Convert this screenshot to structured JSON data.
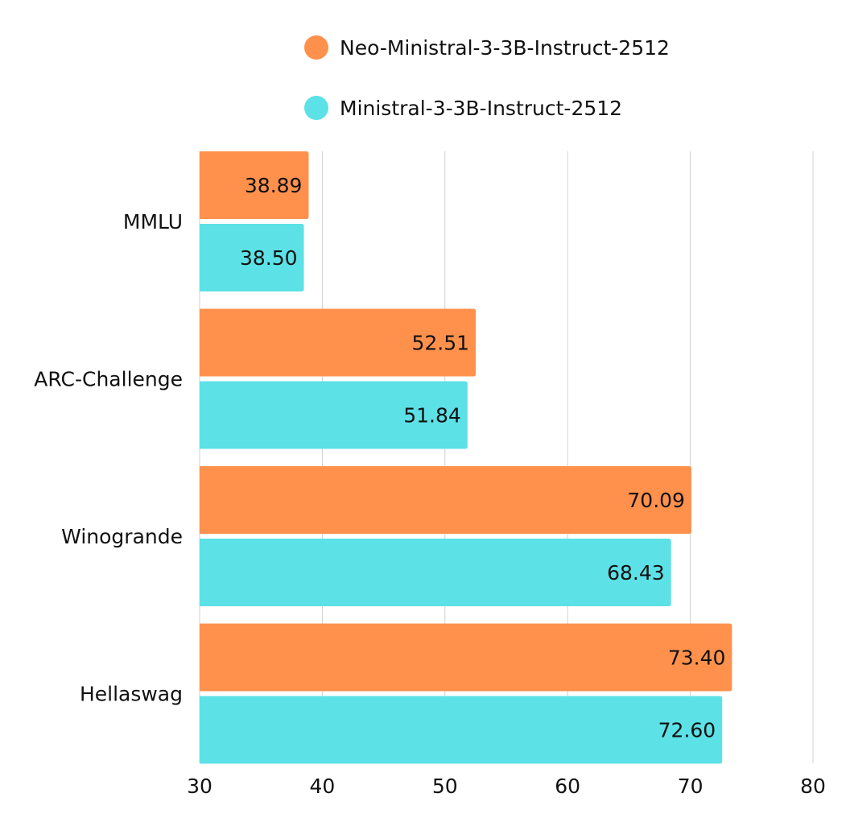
{
  "chart_data": {
    "type": "bar",
    "orientation": "horizontal",
    "categories": [
      "MMLU",
      "ARC-Challenge",
      "Winogrande",
      "Hellaswag"
    ],
    "series": [
      {
        "name": "Neo-Ministral-3-3B-Instruct-2512",
        "color": "#FF914D",
        "values": [
          38.89,
          52.51,
          70.09,
          73.4
        ],
        "labels": [
          "38.89",
          "52.51",
          "70.09",
          "73.40"
        ]
      },
      {
        "name": "Ministral-3-3B-Instruct-2512",
        "color": "#5CE1E6",
        "values": [
          38.5,
          51.84,
          68.43,
          72.6
        ],
        "labels": [
          "38.50",
          "51.84",
          "68.43",
          "72.60"
        ]
      }
    ],
    "xlim": [
      30,
      80
    ],
    "ticks": [
      "30",
      "40",
      "50",
      "60",
      "70",
      "80"
    ],
    "grid": true,
    "legend_position": "top",
    "title": "",
    "xlabel": "",
    "ylabel": ""
  }
}
